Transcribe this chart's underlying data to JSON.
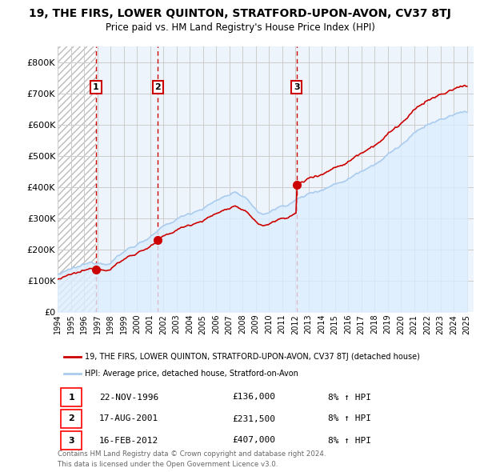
{
  "title": "19, THE FIRS, LOWER QUINTON, STRATFORD-UPON-AVON, CV37 8TJ",
  "subtitle": "Price paid vs. HM Land Registry's House Price Index (HPI)",
  "legend_line1": "19, THE FIRS, LOWER QUINTON, STRATFORD-UPON-AVON, CV37 8TJ (detached house)",
  "legend_line2": "HPI: Average price, detached house, Stratford-on-Avon",
  "footer1": "Contains HM Land Registry data © Crown copyright and database right 2024.",
  "footer2": "This data is licensed under the Open Government Licence v3.0.",
  "sales": [
    {
      "label": "1",
      "date": "22-NOV-1996",
      "price": 136000,
      "hpi_pct": "8% ↑ HPI",
      "year": 1996.9
    },
    {
      "label": "2",
      "date": "17-AUG-2001",
      "price": 231500,
      "hpi_pct": "8% ↑ HPI",
      "year": 2001.6
    },
    {
      "label": "3",
      "date": "16-FEB-2012",
      "price": 407000,
      "hpi_pct": "8% ↑ HPI",
      "year": 2012.1
    }
  ],
  "hpi_color": "#aaccee",
  "hpi_fill": "#ddeeff",
  "sale_color": "#cc0000",
  "grid_color": "#cccccc",
  "dashed_color": "#cc0000",
  "bg_color": "#eef4fb",
  "ylim": [
    0,
    850000
  ],
  "xlim_start": 1994,
  "xlim_end": 2025.5,
  "yticks": [
    0,
    100000,
    200000,
    300000,
    400000,
    500000,
    600000,
    700000,
    800000
  ],
  "ytick_labels": [
    "£0",
    "£100K",
    "£200K",
    "£300K",
    "£400K",
    "£500K",
    "£600K",
    "£700K",
    "£800K"
  ],
  "xticks": [
    1994,
    1995,
    1996,
    1997,
    1998,
    1999,
    2000,
    2001,
    2002,
    2003,
    2004,
    2005,
    2006,
    2007,
    2008,
    2009,
    2010,
    2011,
    2012,
    2013,
    2014,
    2015,
    2016,
    2017,
    2018,
    2019,
    2020,
    2021,
    2022,
    2023,
    2024,
    2025
  ]
}
